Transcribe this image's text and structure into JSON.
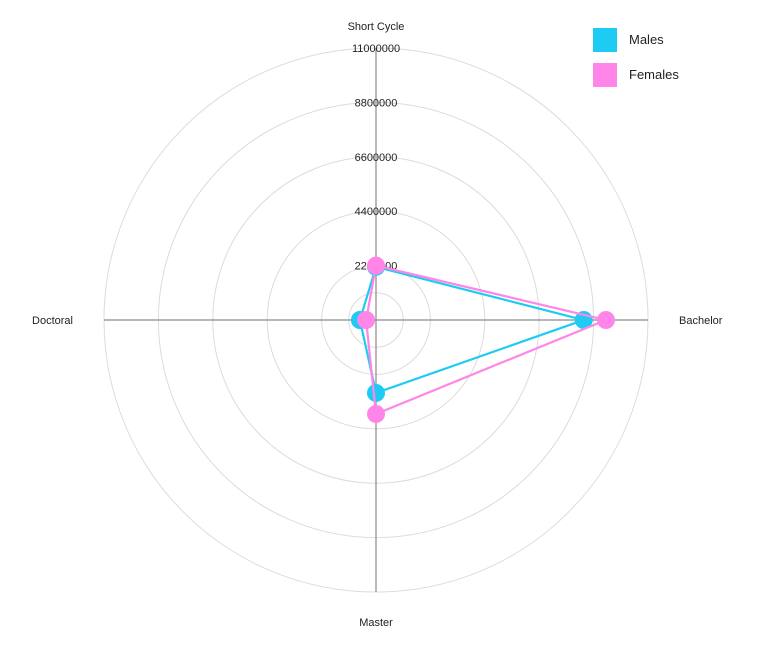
{
  "chart_data": {
    "type": "radar",
    "categories": [
      "Short Cycle",
      "Bachelor",
      "Master",
      "Doctoral"
    ],
    "series": [
      {
        "name": "Males",
        "color": "#1ecbf3",
        "values": [
          2150000,
          8400000,
          2950000,
          650000
        ]
      },
      {
        "name": "Females",
        "color": "#ff86e8",
        "values": [
          2200000,
          9300000,
          3800000,
          400000
        ]
      }
    ],
    "rlim": [
      0,
      11000000
    ],
    "tick_values": [
      2200000,
      4400000,
      6600000,
      8800000,
      11000000
    ],
    "tick_labels": [
      "2200000",
      "4400000",
      "6600000",
      "8800000",
      "11000000"
    ],
    "grid": true,
    "legend_position": "top-right"
  }
}
